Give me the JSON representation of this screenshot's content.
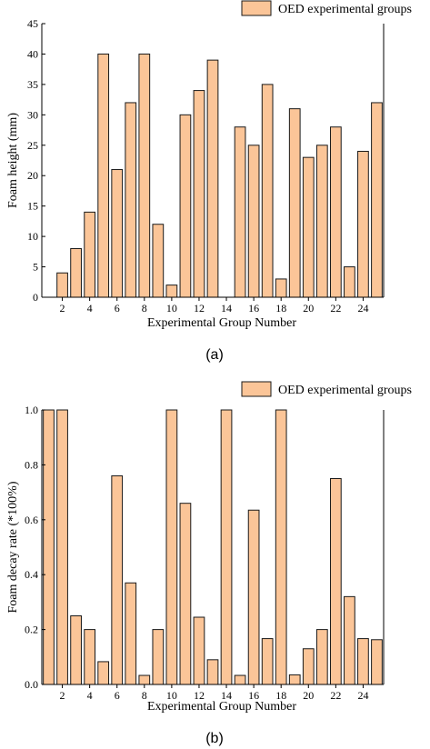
{
  "colors": {
    "bar_fill": "#FBC598",
    "bar_stroke": "#1a1a1a",
    "axis": "#000000"
  },
  "chart_data": [
    {
      "type": "bar",
      "panel_label": "(a)",
      "legend": "OED experimental groups",
      "xlabel": "Experimental Group Number",
      "ylabel": "Foam height (mm)",
      "ylim": [
        0,
        45
      ],
      "yticks": [
        0,
        5,
        10,
        15,
        20,
        25,
        30,
        35,
        40,
        45
      ],
      "ytick_labels": [
        "0",
        "5",
        "10",
        "15",
        "20",
        "25",
        "30",
        "35",
        "40",
        "45"
      ],
      "xticks": [
        2,
        4,
        6,
        8,
        10,
        12,
        14,
        16,
        18,
        20,
        22,
        24
      ],
      "xtick_labels": [
        "2",
        "4",
        "6",
        "8",
        "10",
        "12",
        "14",
        "16",
        "18",
        "20",
        "22",
        "24"
      ],
      "categories": [
        1,
        2,
        3,
        4,
        5,
        6,
        7,
        8,
        9,
        10,
        11,
        12,
        13,
        14,
        15,
        16,
        17,
        18,
        19,
        20,
        21,
        22,
        23,
        24,
        25
      ],
      "values": [
        0,
        4,
        8,
        14,
        40,
        21,
        32,
        40,
        12,
        2,
        30,
        34,
        39,
        0,
        28,
        25,
        35,
        3,
        31,
        23,
        25,
        28,
        5,
        24,
        32
      ],
      "grid": false,
      "legend_position": "top-right"
    },
    {
      "type": "bar",
      "panel_label": "(b)",
      "legend": "OED experimental groups",
      "xlabel": "Experimental Group Number",
      "ylabel": "Foam decay rate (*100%)",
      "ylim": [
        0,
        1.0
      ],
      "yticks": [
        0,
        0.2,
        0.4,
        0.6,
        0.8,
        1.0
      ],
      "ytick_labels": [
        "0.0",
        "0.2",
        "0.4",
        "0.6",
        "0.8",
        "1.0"
      ],
      "xticks": [
        2,
        4,
        6,
        8,
        10,
        12,
        14,
        16,
        18,
        20,
        22,
        24
      ],
      "xtick_labels": [
        "2",
        "4",
        "6",
        "8",
        "10",
        "12",
        "14",
        "16",
        "18",
        "20",
        "22",
        "24"
      ],
      "categories": [
        1,
        2,
        3,
        4,
        5,
        6,
        7,
        8,
        9,
        10,
        11,
        12,
        13,
        14,
        15,
        16,
        17,
        18,
        19,
        20,
        21,
        22,
        23,
        24,
        25
      ],
      "values": [
        1.0,
        1.0,
        0.25,
        0.2,
        0.083,
        0.76,
        0.37,
        0.033,
        0.2,
        1.0,
        0.66,
        0.245,
        0.09,
        1.0,
        0.033,
        0.635,
        0.167,
        1.0,
        0.035,
        0.13,
        0.2,
        0.75,
        0.32,
        0.167,
        0.163
      ],
      "grid": false,
      "legend_position": "top-right"
    }
  ]
}
